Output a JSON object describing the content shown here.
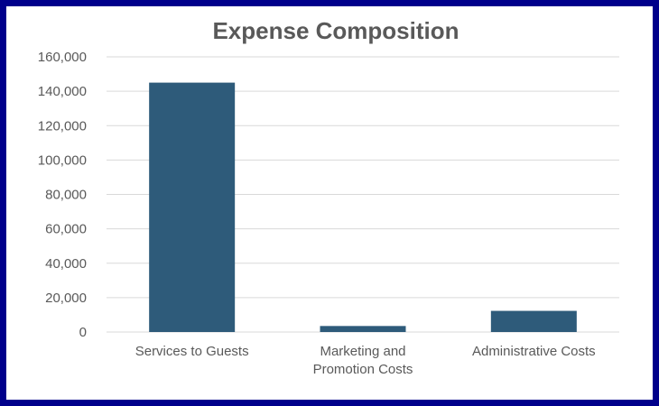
{
  "chart_data": {
    "type": "bar",
    "title": "Expense Composition",
    "categories": [
      [
        "Services to Guests"
      ],
      [
        "Marketing and",
        "Promotion Costs"
      ],
      [
        "Administrative Costs"
      ]
    ],
    "values": [
      145000,
      3500,
      12300
    ],
    "ylim": [
      0,
      160000
    ],
    "yticks": [
      "0",
      "20,000",
      "40,000",
      "60,000",
      "80,000",
      "100,000",
      "120,000",
      "140,000",
      "160,000"
    ],
    "ytick_values": [
      0,
      20000,
      40000,
      60000,
      80000,
      100000,
      120000,
      140000,
      160000
    ],
    "grid": true,
    "legend": "none",
    "bar_color": "#2e5b7a",
    "grid_color": "#d9d9d9",
    "frame_color": "#00008b"
  }
}
